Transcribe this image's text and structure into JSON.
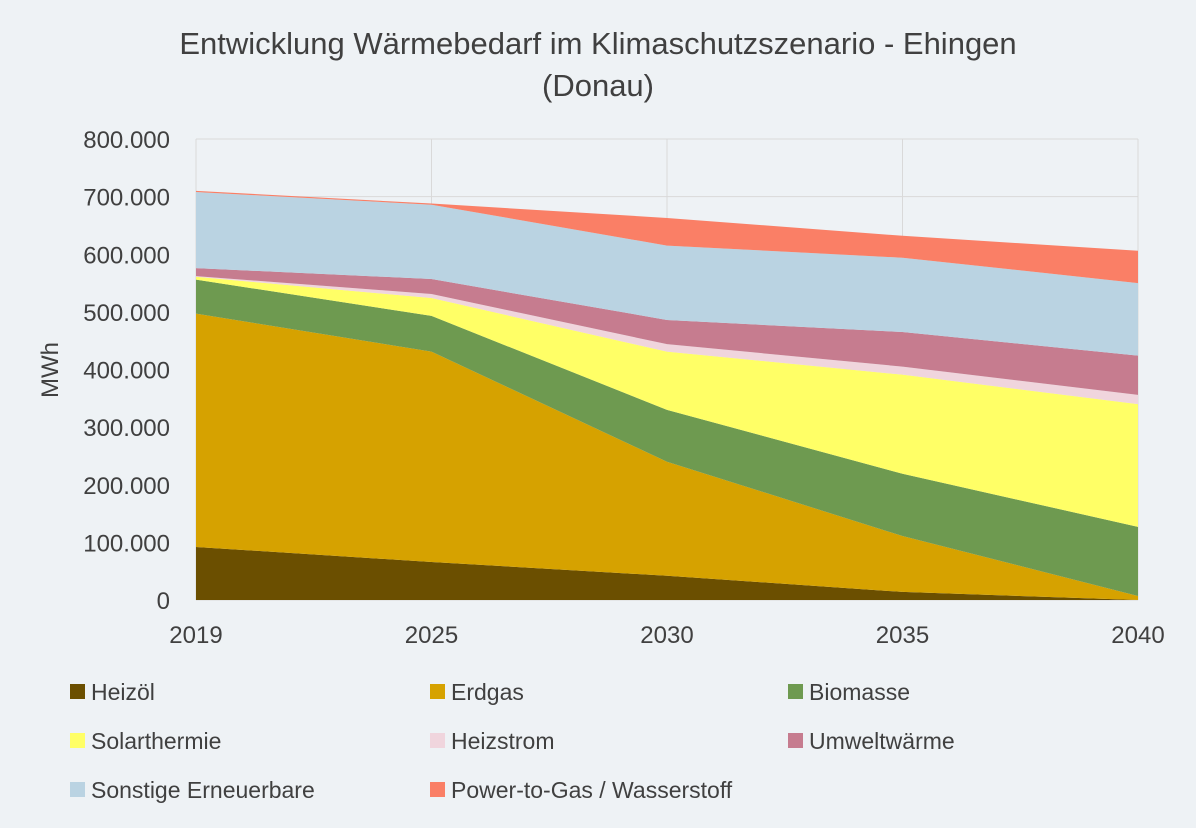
{
  "chart_data": {
    "type": "area",
    "stacked": true,
    "title": "Entwicklung Wärmebedarf im Klimaschutzszenario - Ehingen (Donau)",
    "title_lines": [
      "Entwicklung Wärmebedarf im Klimaschutzszenario - Ehingen",
      "(Donau)"
    ],
    "xlabel": "",
    "ylabel": "MWh",
    "ylim": [
      0,
      800000
    ],
    "yticks": [
      0,
      100000,
      200000,
      300000,
      400000,
      500000,
      600000,
      700000,
      800000
    ],
    "ytick_labels": [
      "0",
      "100.000",
      "200.000",
      "300.000",
      "400.000",
      "500.000",
      "600.000",
      "700.000",
      "800.000"
    ],
    "categories": [
      "2019",
      "2025",
      "2030",
      "2035",
      "2040"
    ],
    "grid": true,
    "legend_position": "bottom",
    "series": [
      {
        "name": "Heizöl",
        "color": "#6b4f00",
        "values": [
          92000,
          66000,
          42000,
          14000,
          0
        ]
      },
      {
        "name": "Erdgas",
        "color": "#d6a200",
        "values": [
          405000,
          365000,
          198000,
          97000,
          7000
        ]
      },
      {
        "name": "Biomasse",
        "color": "#6e9a50",
        "values": [
          59000,
          62000,
          90000,
          108000,
          120000
        ]
      },
      {
        "name": "Solarthermie",
        "color": "#ffff66",
        "values": [
          5000,
          31000,
          101000,
          172000,
          213000
        ]
      },
      {
        "name": "Heizstrom",
        "color": "#f0d5dd",
        "values": [
          1000,
          7000,
          13000,
          14000,
          16000
        ]
      },
      {
        "name": "Umweltwärme",
        "color": "#c67c8f",
        "values": [
          14000,
          26000,
          42000,
          60000,
          68000
        ]
      },
      {
        "name": "Sonstige Erneuerbare",
        "color": "#bad3e2",
        "values": [
          132000,
          129000,
          129000,
          129000,
          126000
        ]
      },
      {
        "name": "Power-to-Gas / Wasserstoff",
        "color": "#fa7f66",
        "values": [
          2000,
          2000,
          48000,
          38000,
          56000
        ]
      }
    ]
  }
}
